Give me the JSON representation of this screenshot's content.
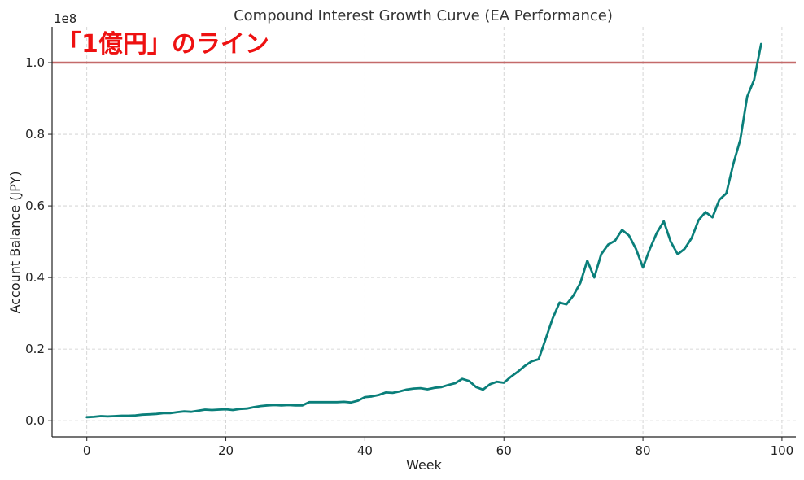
{
  "chart_data": {
    "type": "line",
    "title": "Compound Interest Growth Curve (EA Performance)",
    "xlabel": "Week",
    "ylabel": "Account Balance (JPY)",
    "y_offset_text": "1e8",
    "xlim": [
      -5,
      102
    ],
    "ylim": [
      -0.045,
      1.1
    ],
    "x_ticks": [
      0,
      20,
      40,
      60,
      80,
      100
    ],
    "y_ticks": [
      0.0,
      0.2,
      0.4,
      0.6,
      0.8,
      1.0
    ],
    "x_tick_labels": [
      "0",
      "20",
      "40",
      "60",
      "80",
      "100"
    ],
    "y_tick_labels": [
      "0.0",
      "0.2",
      "0.4",
      "0.6",
      "0.8",
      "1.0"
    ],
    "grid": true,
    "threshold_line": {
      "y": 1.0,
      "color": "#c46a6a"
    },
    "annotation": "「1億円」のライン",
    "series": [
      {
        "color": "#0a7f7a",
        "x": [
          0,
          1,
          2,
          3,
          4,
          5,
          6,
          7,
          8,
          9,
          10,
          11,
          12,
          13,
          14,
          15,
          16,
          17,
          18,
          19,
          20,
          21,
          22,
          23,
          24,
          25,
          26,
          27,
          28,
          29,
          30,
          31,
          32,
          33,
          34,
          35,
          36,
          37,
          38,
          39,
          40,
          41,
          42,
          43,
          44,
          45,
          46,
          47,
          48,
          49,
          50,
          51,
          52,
          53,
          54,
          55,
          56,
          57,
          58,
          59,
          60,
          61,
          62,
          63,
          64,
          65,
          66,
          67,
          68,
          69,
          70,
          71,
          72,
          73,
          74,
          75,
          76,
          77,
          78,
          79,
          80,
          81,
          82,
          83,
          84,
          85,
          86,
          87,
          88,
          89,
          90,
          91,
          92,
          93,
          94,
          95,
          96,
          97
        ],
        "values": [
          0.01,
          0.011,
          0.013,
          0.012,
          0.013,
          0.014,
          0.014,
          0.015,
          0.017,
          0.018,
          0.019,
          0.021,
          0.021,
          0.024,
          0.026,
          0.025,
          0.028,
          0.031,
          0.03,
          0.031,
          0.032,
          0.03,
          0.033,
          0.034,
          0.038,
          0.041,
          0.043,
          0.044,
          0.043,
          0.044,
          0.043,
          0.043,
          0.052,
          0.052,
          0.052,
          0.052,
          0.052,
          0.053,
          0.051,
          0.056,
          0.066,
          0.068,
          0.072,
          0.079,
          0.078,
          0.082,
          0.087,
          0.09,
          0.091,
          0.088,
          0.092,
          0.094,
          0.1,
          0.105,
          0.117,
          0.111,
          0.094,
          0.087,
          0.102,
          0.109,
          0.106,
          0.123,
          0.137,
          0.153,
          0.166,
          0.172,
          0.228,
          0.285,
          0.33,
          0.325,
          0.35,
          0.385,
          0.447,
          0.4,
          0.465,
          0.492,
          0.503,
          0.533,
          0.517,
          0.48,
          0.428,
          0.48,
          0.525,
          0.557,
          0.5,
          0.465,
          0.48,
          0.51,
          0.56,
          0.583,
          0.568,
          0.617,
          0.635,
          0.717,
          0.785,
          0.905,
          0.952,
          1.052
        ]
      }
    ]
  }
}
